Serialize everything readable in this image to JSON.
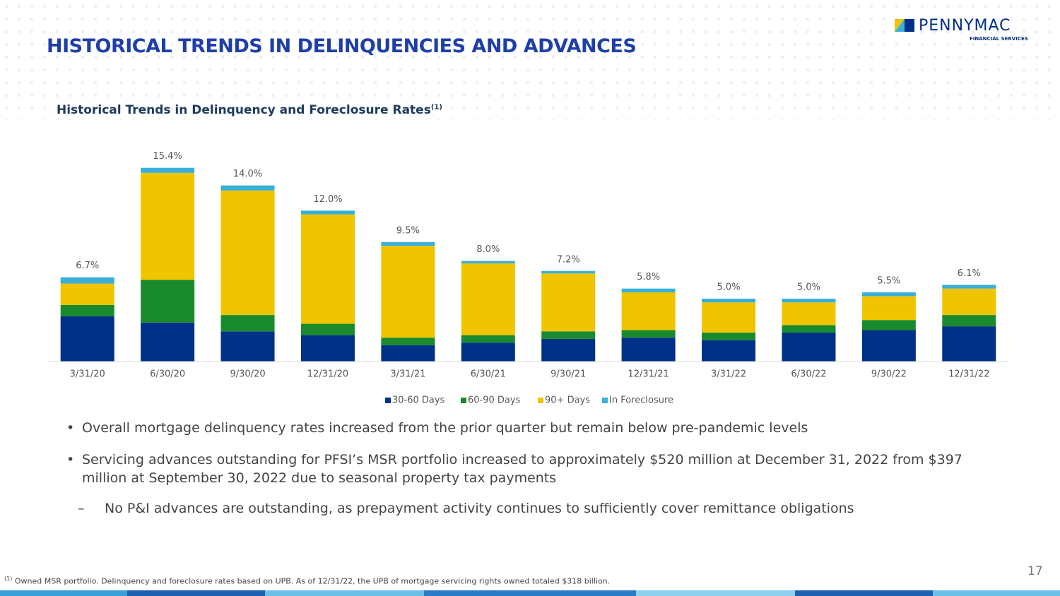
{
  "header": {
    "title": "HISTORICAL TRENDS IN DELINQUENCIES AND ADVANCES",
    "logo": "PENNYMAC",
    "logo_sub": "FINANCIAL SERVICES"
  },
  "chart_data": {
    "type": "stacked_bar",
    "title": "Historical Trends in Delinquency and Foreclosure Rates",
    "title_note": "(1)",
    "categories": [
      "3/31/20",
      "6/30/20",
      "9/30/20",
      "12/31/20",
      "3/31/21",
      "6/30/21",
      "9/30/21",
      "12/31/21",
      "3/31/22",
      "6/30/22",
      "9/30/22",
      "12/31/22"
    ],
    "series": [
      {
        "name": "30-60 Days",
        "color": "#003087",
        "values": [
          3.6,
          3.1,
          2.4,
          2.1,
          1.3,
          1.5,
          1.8,
          1.9,
          1.7,
          2.3,
          2.5,
          2.8
        ]
      },
      {
        "name": "60-90 Days",
        "color": "#1a8a2e",
        "values": [
          0.9,
          3.4,
          1.3,
          0.9,
          0.6,
          0.6,
          0.6,
          0.6,
          0.6,
          0.6,
          0.8,
          0.9
        ]
      },
      {
        "name": "90+ Days",
        "color": "#f0c400",
        "values": [
          1.7,
          8.5,
          9.9,
          8.7,
          7.3,
          5.7,
          4.6,
          3.0,
          2.4,
          1.8,
          1.9,
          2.1
        ]
      },
      {
        "name": "In Foreclosure",
        "color": "#3aafd9",
        "values": [
          0.5,
          0.4,
          0.4,
          0.3,
          0.3,
          0.2,
          0.2,
          0.3,
          0.3,
          0.3,
          0.3,
          0.3
        ]
      }
    ],
    "totals": [
      {
        "value": 6.7,
        "label": "6.7%"
      },
      {
        "value": 15.4,
        "label": "15.4%"
      },
      {
        "value": 14.0,
        "label": "14.0%"
      },
      {
        "value": 12.0,
        "label": "12.0%"
      },
      {
        "value": 9.5,
        "label": "9.5%"
      },
      {
        "value": 8.0,
        "label": "8.0%"
      },
      {
        "value": 7.2,
        "label": "7.2%"
      },
      {
        "value": 5.8,
        "label": "5.8%"
      },
      {
        "value": 5.0,
        "label": "5.0%"
      },
      {
        "value": 5.0,
        "label": "5.0%"
      },
      {
        "value": 5.5,
        "label": "5.5%"
      },
      {
        "value": 6.1,
        "label": "6.1%"
      }
    ],
    "ylim": [
      0,
      16
    ]
  },
  "bullets": [
    "Overall mortgage delinquency rates increased from the prior quarter but remain below pre-pandemic levels",
    "Servicing advances outstanding for PFSI’s MSR portfolio increased to approximately $520 million at December 31, 2022 from $397 million at September 30, 2022 due to seasonal property tax payments"
  ],
  "sub_bullet": "No P&I advances are outstanding, as prepayment activity continues to sufficiently cover remittance obligations",
  "footnote": {
    "mark": "(1)",
    "text": "Owned MSR portfolio. Delinquency and foreclosure rates based on UPB. As of 12/31/22, the UPB of mortgage servicing rights owned totaled $318 billion."
  },
  "page_number": "17"
}
